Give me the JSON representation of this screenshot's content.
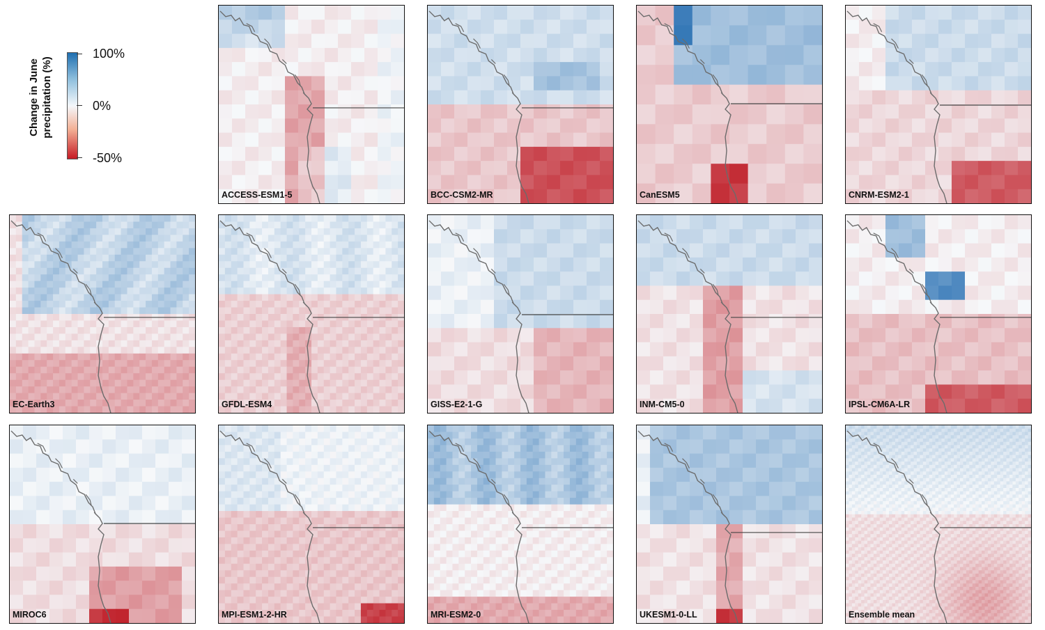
{
  "legend": {
    "title_line1": "Change in June",
    "title_line2": "precipitation (%)",
    "tick_top": "100%",
    "tick_mid": "0%",
    "tick_bottom": "-50%",
    "colors": {
      "max": "#1f6fb0",
      "zero": "#f4f7fa",
      "min": "#c61b25"
    }
  },
  "panels": [
    {
      "label": "ACCESS-ESM1-5"
    },
    {
      "label": "BCC-CSM2-MR"
    },
    {
      "label": "CanESM5"
    },
    {
      "label": "CNRM-ESM2-1"
    },
    {
      "label": "EC-Earth3"
    },
    {
      "label": "GFDL-ESM4"
    },
    {
      "label": "GISS-E2-1-G"
    },
    {
      "label": "INM-CM5-0"
    },
    {
      "label": "IPSL-CM6A-LR"
    },
    {
      "label": "MIROC6"
    },
    {
      "label": "MPI-ESM1-2-HR"
    },
    {
      "label": "MRI-ESM2-0"
    },
    {
      "label": "UKESM1-0-LL"
    },
    {
      "label": "Ensemble mean"
    }
  ]
}
